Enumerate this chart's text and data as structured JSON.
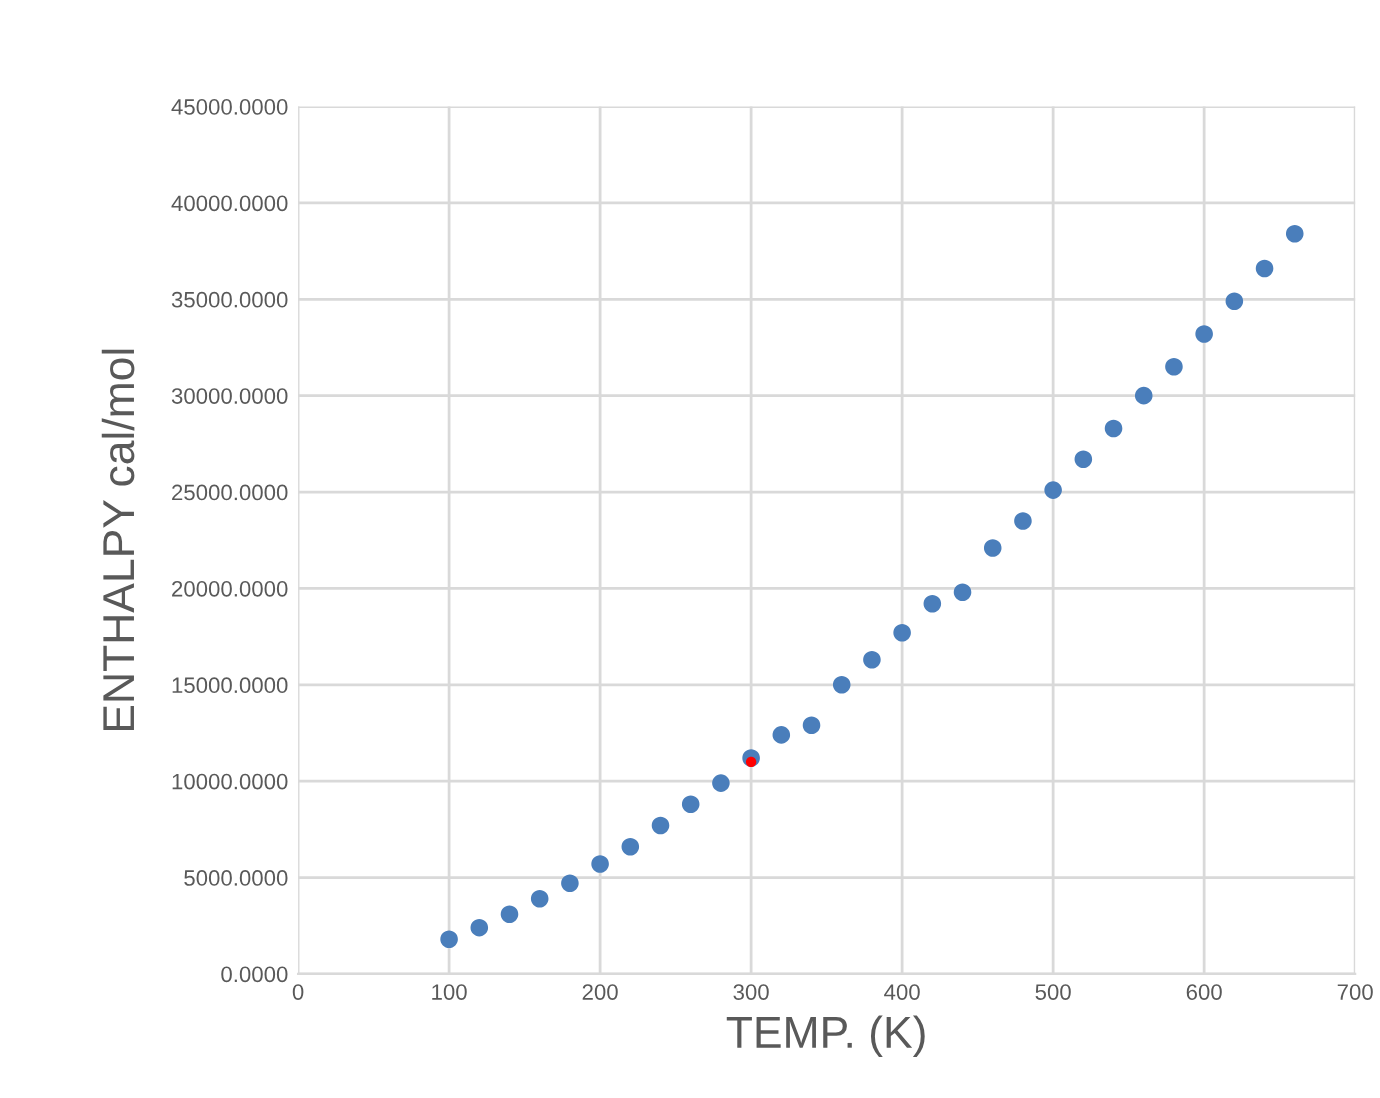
{
  "chart_data": {
    "type": "scatter",
    "xlabel": "TEMP. (K)",
    "ylabel": "ENTHALPY cal/mol",
    "x": [
      100,
      120,
      140,
      160,
      180,
      200,
      220,
      240,
      260,
      280,
      300,
      320,
      340,
      360,
      380,
      400,
      420,
      440,
      460,
      480,
      500,
      520,
      540,
      560,
      580,
      600,
      620,
      640,
      660
    ],
    "series": [
      {
        "color": "#4a7ebb",
        "values": [
          1800,
          2400,
          3100,
          3900,
          4700,
          5700,
          6600,
          7700,
          8800,
          9900,
          11200,
          12400,
          12900,
          15000,
          16300,
          17700,
          19200,
          19800,
          22100,
          23500,
          25100,
          26700,
          28300,
          30000,
          31500,
          33200,
          34900,
          36600,
          38400
        ]
      },
      {
        "color": "#ff0000",
        "x": [
          300
        ],
        "values": [
          11000
        ]
      }
    ],
    "xlim": [
      0,
      700
    ],
    "xticks": [
      0,
      100,
      200,
      300,
      400,
      500,
      600,
      700
    ],
    "ylim": [
      0,
      45000
    ],
    "yticks": [
      {
        "value": 0,
        "label": "0.0000"
      },
      {
        "value": 5000,
        "label": "5000.0000"
      },
      {
        "value": 10000,
        "label": "10000.0000"
      },
      {
        "value": 15000,
        "label": "15000.0000"
      },
      {
        "value": 20000,
        "label": "20000.0000"
      },
      {
        "value": 25000,
        "label": "25000.0000"
      },
      {
        "value": 30000,
        "label": "30000.0000"
      },
      {
        "value": 35000,
        "label": "35000.0000"
      },
      {
        "value": 40000,
        "label": "40000.0000"
      },
      {
        "value": 45000,
        "label": "45000.0000"
      }
    ],
    "grid": true,
    "marker": "circle",
    "legend": false
  }
}
